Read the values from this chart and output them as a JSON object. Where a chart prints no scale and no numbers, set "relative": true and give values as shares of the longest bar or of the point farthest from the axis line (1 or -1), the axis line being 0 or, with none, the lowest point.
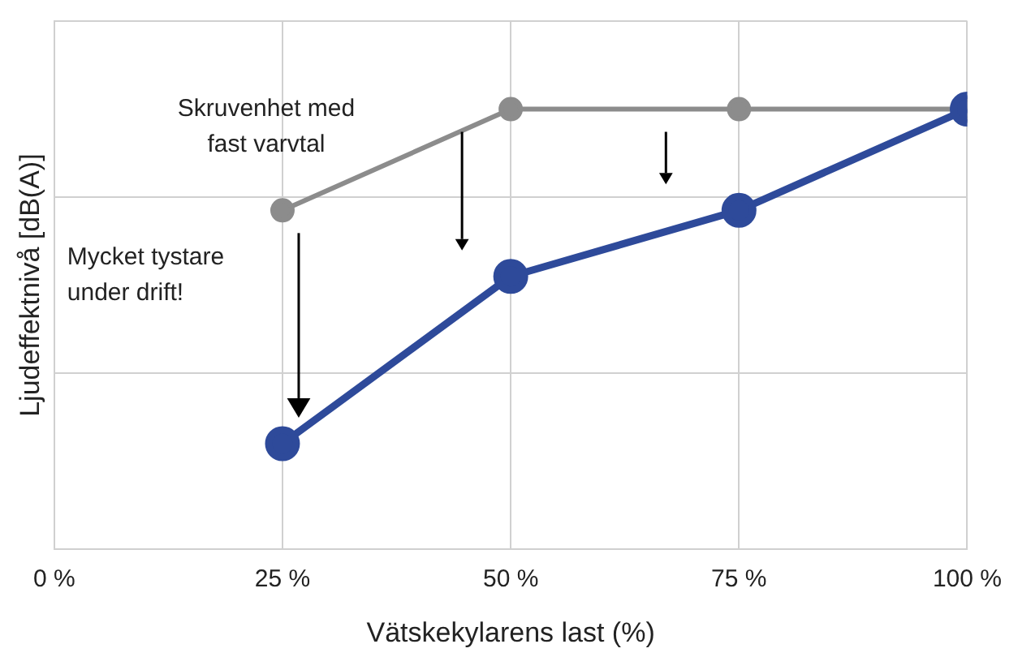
{
  "chart_data": {
    "type": "line",
    "relative": true,
    "xlabel": "Vätskekylarens last (%)",
    "ylabel": "Ljudeffektnivå [dB(A)]",
    "x": [
      25,
      50,
      75,
      100
    ],
    "xlim": [
      0,
      100
    ],
    "xticks": [
      {
        "value": 0,
        "label": "0 %"
      },
      {
        "value": 25,
        "label": "25 %"
      },
      {
        "value": 50,
        "label": "50 %"
      },
      {
        "value": 75,
        "label": "75 %"
      },
      {
        "value": 100,
        "label": "100 %"
      }
    ],
    "series": [
      {
        "name": "Skruvenhet med fast varvtal",
        "color": "#8c8c8c",
        "values": [
          0.77,
          1,
          1,
          1
        ]
      },
      {
        "color": "#2e4a9a",
        "values": [
          0.24,
          0.62,
          0.77,
          1
        ]
      }
    ],
    "annotations": [
      "Mycket tystare under drift!"
    ],
    "grid": true,
    "legend": false,
    "marker": "circle",
    "line_style": "solid"
  }
}
